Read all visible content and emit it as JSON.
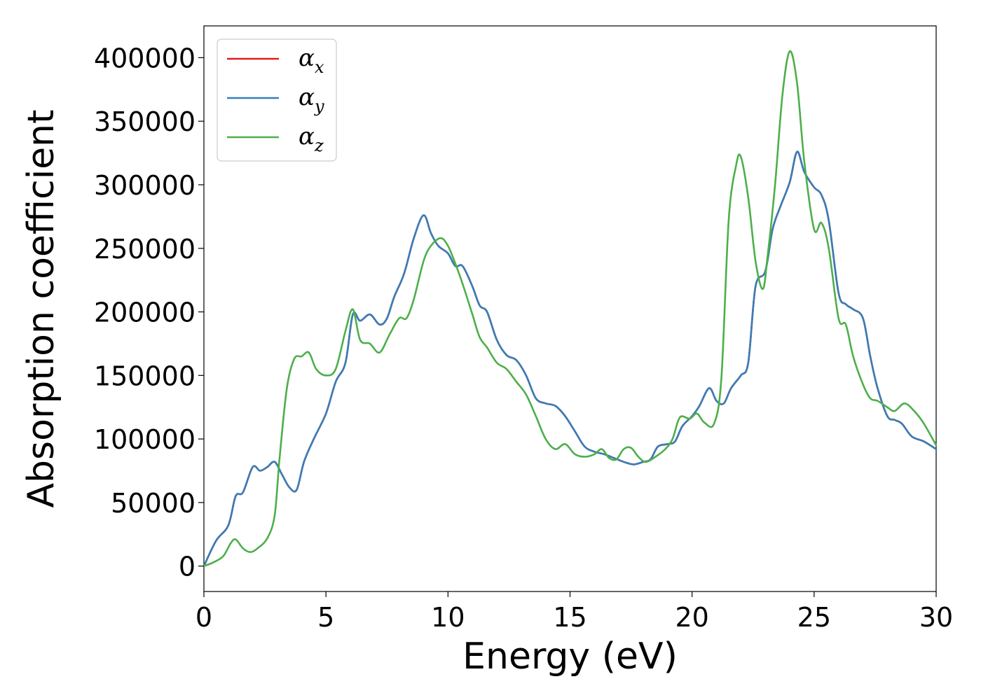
{
  "chart_data": {
    "type": "line",
    "title": "",
    "xlabel": "Energy (eV)",
    "ylabel": "Absorption coefficient",
    "xlim": [
      0,
      30
    ],
    "ylim": [
      -20000,
      425000
    ],
    "xticks": [
      0,
      5,
      10,
      15,
      20,
      25,
      30
    ],
    "yticks": [
      0,
      50000,
      100000,
      150000,
      200000,
      250000,
      300000,
      350000,
      400000
    ],
    "grid": false,
    "legend": {
      "position": "top-left"
    },
    "series": [
      {
        "name": "α_x",
        "label_main": "α",
        "label_sub": "x",
        "color": "#e41a1c",
        "x": [
          0,
          0.5,
          1,
          1.3,
          1.6,
          2,
          2.3,
          2.6,
          2.9,
          3.2,
          3.5,
          3.8,
          4.1,
          4.5,
          5,
          5.4,
          5.8,
          6.1,
          6.4,
          6.8,
          7.2,
          7.5,
          7.8,
          8.2,
          8.6,
          9,
          9.3,
          9.6,
          10,
          10.3,
          10.6,
          11,
          11.3,
          11.6,
          12,
          12.4,
          12.8,
          13.2,
          13.6,
          14,
          14.4,
          14.8,
          15.2,
          15.6,
          16,
          16.4,
          16.8,
          17.2,
          17.6,
          18,
          18.3,
          18.6,
          19,
          19.3,
          19.6,
          20,
          20.3,
          20.7,
          21,
          21.3,
          21.6,
          22,
          22.3,
          22.6,
          23,
          23.3,
          23.6,
          24,
          24.3,
          24.6,
          25,
          25.3,
          25.6,
          26,
          26.3,
          26.6,
          27,
          27.3,
          27.6,
          28,
          28.3,
          28.6,
          29,
          29.5,
          30
        ],
        "y": [
          0,
          20000,
          32000,
          55000,
          58000,
          78000,
          75000,
          78000,
          82000,
          72000,
          62000,
          60000,
          82000,
          100000,
          120000,
          145000,
          160000,
          198000,
          193000,
          198000,
          190000,
          195000,
          212000,
          230000,
          258000,
          276000,
          262000,
          252000,
          246000,
          236000,
          236000,
          220000,
          205000,
          200000,
          178000,
          166000,
          162000,
          150000,
          132000,
          128000,
          126000,
          118000,
          106000,
          94000,
          90000,
          88000,
          85000,
          82000,
          80000,
          82000,
          84000,
          94000,
          96000,
          98000,
          110000,
          118000,
          126000,
          140000,
          130000,
          128000,
          140000,
          150000,
          160000,
          220000,
          232000,
          265000,
          282000,
          302000,
          326000,
          310000,
          298000,
          292000,
          272000,
          215000,
          206000,
          202000,
          195000,
          165000,
          140000,
          118000,
          115000,
          112000,
          102000,
          98000,
          92000
        ],
        "hidden_under": "α_y"
      },
      {
        "name": "α_y",
        "label_main": "α",
        "label_sub": "y",
        "color": "#377eb8",
        "x": [
          0,
          0.5,
          1,
          1.3,
          1.6,
          2,
          2.3,
          2.6,
          2.9,
          3.2,
          3.5,
          3.8,
          4.1,
          4.5,
          5,
          5.4,
          5.8,
          6.1,
          6.4,
          6.8,
          7.2,
          7.5,
          7.8,
          8.2,
          8.6,
          9,
          9.3,
          9.6,
          10,
          10.3,
          10.6,
          11,
          11.3,
          11.6,
          12,
          12.4,
          12.8,
          13.2,
          13.6,
          14,
          14.4,
          14.8,
          15.2,
          15.6,
          16,
          16.4,
          16.8,
          17.2,
          17.6,
          18,
          18.3,
          18.6,
          19,
          19.3,
          19.6,
          20,
          20.3,
          20.7,
          21,
          21.3,
          21.6,
          22,
          22.3,
          22.6,
          23,
          23.3,
          23.6,
          24,
          24.3,
          24.6,
          25,
          25.3,
          25.6,
          26,
          26.3,
          26.6,
          27,
          27.3,
          27.6,
          28,
          28.3,
          28.6,
          29,
          29.5,
          30
        ],
        "y": [
          0,
          20000,
          32000,
          55000,
          58000,
          78000,
          75000,
          78000,
          82000,
          72000,
          62000,
          60000,
          82000,
          100000,
          120000,
          145000,
          160000,
          198000,
          193000,
          198000,
          190000,
          195000,
          212000,
          230000,
          258000,
          276000,
          262000,
          252000,
          246000,
          236000,
          236000,
          220000,
          205000,
          200000,
          178000,
          166000,
          162000,
          150000,
          132000,
          128000,
          126000,
          118000,
          106000,
          94000,
          90000,
          88000,
          85000,
          82000,
          80000,
          82000,
          84000,
          94000,
          96000,
          98000,
          110000,
          118000,
          126000,
          140000,
          130000,
          128000,
          140000,
          150000,
          160000,
          220000,
          232000,
          265000,
          282000,
          302000,
          326000,
          310000,
          298000,
          292000,
          272000,
          215000,
          206000,
          202000,
          195000,
          165000,
          140000,
          118000,
          115000,
          112000,
          102000,
          98000,
          92000
        ]
      },
      {
        "name": "α_z",
        "label_main": "α",
        "label_sub": "z",
        "color": "#4daf4a",
        "x": [
          0,
          0.4,
          0.8,
          1.1,
          1.3,
          1.6,
          1.9,
          2.2,
          2.6,
          2.9,
          3.1,
          3.4,
          3.7,
          4,
          4.3,
          4.6,
          5,
          5.4,
          5.8,
          6.1,
          6.4,
          6.8,
          7.2,
          7.6,
          8,
          8.3,
          8.6,
          9,
          9.3,
          9.7,
          10,
          10.3,
          10.6,
          11,
          11.3,
          11.6,
          12,
          12.4,
          12.8,
          13.2,
          13.6,
          14,
          14.4,
          14.8,
          15.2,
          15.6,
          16,
          16.3,
          16.6,
          16.9,
          17.2,
          17.5,
          17.8,
          18.1,
          18.5,
          18.9,
          19.2,
          19.5,
          19.9,
          20.2,
          20.5,
          20.9,
          21.2,
          21.5,
          21.8,
          22,
          22.3,
          22.6,
          22.9,
          23.1,
          23.4,
          23.7,
          24,
          24.3,
          24.6,
          25,
          25.3,
          25.6,
          26,
          26.3,
          26.6,
          27,
          27.3,
          27.6,
          28,
          28.3,
          28.7,
          29.1,
          29.5,
          30
        ],
        "y": [
          0,
          3000,
          8000,
          18000,
          21000,
          14000,
          11000,
          14000,
          22000,
          40000,
          85000,
          140000,
          163000,
          165000,
          168000,
          155000,
          150000,
          155000,
          185000,
          202000,
          178000,
          175000,
          168000,
          182000,
          195000,
          195000,
          210000,
          240000,
          252000,
          258000,
          252000,
          238000,
          222000,
          198000,
          180000,
          172000,
          160000,
          155000,
          145000,
          135000,
          118000,
          100000,
          92000,
          96000,
          88000,
          86000,
          88000,
          92000,
          85000,
          84000,
          92000,
          93000,
          86000,
          82000,
          86000,
          92000,
          100000,
          117000,
          116000,
          120000,
          113000,
          112000,
          148000,
          272000,
          315000,
          322000,
          290000,
          240000,
          218000,
          245000,
          300000,
          370000,
          405000,
          380000,
          318000,
          265000,
          270000,
          250000,
          195000,
          190000,
          165000,
          143000,
          132000,
          130000,
          125000,
          122000,
          128000,
          122000,
          112000,
          95000
        ]
      }
    ]
  }
}
